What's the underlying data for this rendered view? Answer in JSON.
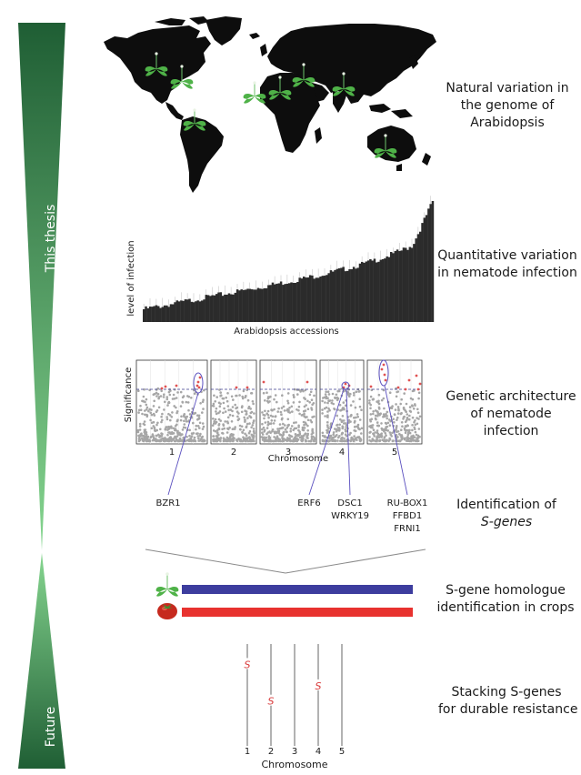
{
  "timeline": {
    "top_label": "This thesis",
    "bottom_label": "Future",
    "colors": {
      "dark": "#1f5e34",
      "light": "#7fd08a"
    }
  },
  "sections": [
    {
      "id": "natural-variation",
      "caption": [
        "Natural variation in",
        "the genome of",
        "Arabidopsis"
      ]
    },
    {
      "id": "quantitative-variation",
      "caption": [
        "Quantitative variation",
        "in nematode infection"
      ]
    },
    {
      "id": "genetic-architecture",
      "caption": [
        "Genetic architecture",
        "of nematode",
        "infection"
      ]
    },
    {
      "id": "s-gene-identification",
      "caption": [
        "Identification of",
        "S-genes"
      ]
    },
    {
      "id": "homologue-identification",
      "caption": [
        "S-gene homologue",
        "identification in crops"
      ]
    },
    {
      "id": "stacking",
      "caption": [
        "Stacking S-genes",
        "for durable resistance"
      ]
    }
  ],
  "infection_chart": {
    "ylabel": "level of infection",
    "xlabel": "Arabidopsis accessions"
  },
  "gwas": {
    "ylabel": "Significance",
    "xlabel": "Chromosome",
    "chromosomes": [
      "1",
      "2",
      "3",
      "4",
      "5"
    ],
    "genes": [
      {
        "lines": [
          "BZR1"
        ],
        "chromosome": "1"
      },
      {
        "lines": [
          "ERF6"
        ],
        "chromosome": "4"
      },
      {
        "lines": [
          "DSC1",
          "WRKY19"
        ],
        "chromosome": "4"
      },
      {
        "lines": [
          "RU-BOX1",
          "FFBD1",
          "FRNI1"
        ],
        "chromosome": "5"
      }
    ]
  },
  "crops": {
    "bars": [
      {
        "plant": "arabidopsis",
        "color": "#3d3d9e"
      },
      {
        "plant": "tomato",
        "color": "#e8322f"
      }
    ]
  },
  "stacking": {
    "xlabel": "Chromosome",
    "chromosomes": [
      "1",
      "2",
      "3",
      "4",
      "5"
    ],
    "marker_symbol": "S",
    "markers": [
      {
        "chromosome": "1",
        "position": 0.2
      },
      {
        "chromosome": "2",
        "position": 0.56
      },
      {
        "chromosome": "4",
        "position": 0.41
      }
    ]
  },
  "colors": {
    "map": "#0d0d0d",
    "bars": "#2b2b2b",
    "manhattan_points": "#a6a6a6",
    "significant_points": "#e05252",
    "highlight_ellipse": "#5a4fbf",
    "stack_marker": "#d93b3b"
  }
}
